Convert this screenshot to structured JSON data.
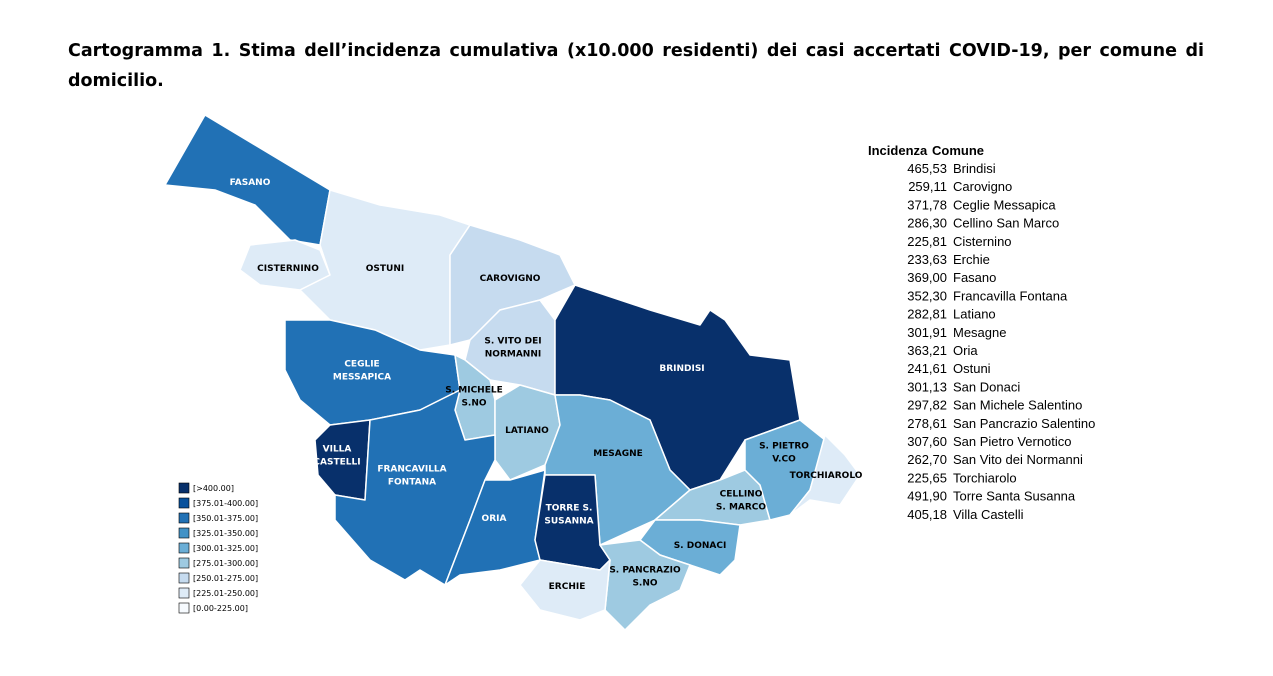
{
  "header": {
    "title": "Cartogramma 1. Stima dell’incidenza cumulativa (x10.000 residenti) dei casi accertati COVID-19, per comune di domicilio."
  },
  "map": {
    "regions": [
      {
        "label": [
          "FASANO"
        ],
        "color": "#2171b5"
      },
      {
        "label": [
          "CISTERNINO"
        ],
        "color": "#deebf7"
      },
      {
        "label": [
          "OSTUNI"
        ],
        "color": "#deebf7"
      },
      {
        "label": [
          "CAROVIGNO"
        ],
        "color": "#c6dbef"
      },
      {
        "label": [
          "S. VITO DEI",
          "NORMANNI"
        ],
        "color": "#c6dbef"
      },
      {
        "label": [
          "BRINDISI"
        ],
        "color": "#08306b"
      },
      {
        "label": [
          "CEGLIE",
          "MESSAPICA"
        ],
        "color": "#2171b5"
      },
      {
        "label": [
          "S. MICHELE",
          "S.NO"
        ],
        "color": "#9ecae1"
      },
      {
        "label": [
          "LATIANO"
        ],
        "color": "#9ecae1"
      },
      {
        "label": [
          "VILLA",
          "CASTELLI"
        ],
        "color": "#08306b"
      },
      {
        "label": [
          "FRANCAVILLA",
          "FONTANA"
        ],
        "color": "#2171b5"
      },
      {
        "label": [
          "ORIA"
        ],
        "color": "#2171b5"
      },
      {
        "label": [
          "MESAGNE"
        ],
        "color": "#6baed6"
      },
      {
        "label": [
          "TORRE S.",
          "SUSANNA"
        ],
        "color": "#08306b"
      },
      {
        "label": [
          "CELLINO",
          "S. MARCO"
        ],
        "color": "#9ecae1"
      },
      {
        "label": [
          "S. DONACI"
        ],
        "color": "#6baed6"
      },
      {
        "label": [
          "S. PIETRO",
          "V.CO"
        ],
        "color": "#6baed6"
      },
      {
        "label": [
          "TORCHIAROLO"
        ],
        "color": "#deebf7"
      },
      {
        "label": [
          "S. PANCRAZIO",
          "S.NO"
        ],
        "color": "#9ecae1"
      },
      {
        "label": [
          "ERCHIE"
        ],
        "color": "#deebf7"
      }
    ],
    "legend": [
      {
        "label": "[>400.00]",
        "color": "#08306b"
      },
      {
        "label": "[375.01-400.00]",
        "color": "#08519c"
      },
      {
        "label": "[350.01-375.00]",
        "color": "#2171b5"
      },
      {
        "label": "[325.01-350.00]",
        "color": "#4292c6"
      },
      {
        "label": "[300.01-325.00]",
        "color": "#6baed6"
      },
      {
        "label": "[275.01-300.00]",
        "color": "#9ecae1"
      },
      {
        "label": "[250.01-275.00]",
        "color": "#c6dbef"
      },
      {
        "label": "[225.01-250.00]",
        "color": "#deebf7"
      },
      {
        "label": "[0.00-225.00]",
        "color": "#f7fbff"
      }
    ]
  },
  "table": {
    "header": [
      "Incidenza",
      "Comune"
    ],
    "rows": [
      [
        "465,53",
        "Brindisi"
      ],
      [
        "259,11",
        "Carovigno"
      ],
      [
        "371,78",
        "Ceglie Messapica"
      ],
      [
        "286,30",
        "Cellino San Marco"
      ],
      [
        "225,81",
        "Cisternino"
      ],
      [
        "233,63",
        "Erchie"
      ],
      [
        "369,00",
        "Fasano"
      ],
      [
        "352,30",
        "Francavilla Fontana"
      ],
      [
        "282,81",
        "Latiano"
      ],
      [
        "301,91",
        "Mesagne"
      ],
      [
        "363,21",
        "Oria"
      ],
      [
        "241,61",
        "Ostuni"
      ],
      [
        "301,13",
        "San Donaci"
      ],
      [
        "297,82",
        "San Michele Salentino"
      ],
      [
        "278,61",
        "San Pancrazio Salentino"
      ],
      [
        "307,60",
        "San Pietro Vernotico"
      ],
      [
        "262,70",
        "San Vito dei Normanni"
      ],
      [
        "225,65",
        "Torchiarolo"
      ],
      [
        "491,90",
        "Torre Santa Susanna"
      ],
      [
        "405,18",
        "Villa Castelli"
      ]
    ]
  }
}
